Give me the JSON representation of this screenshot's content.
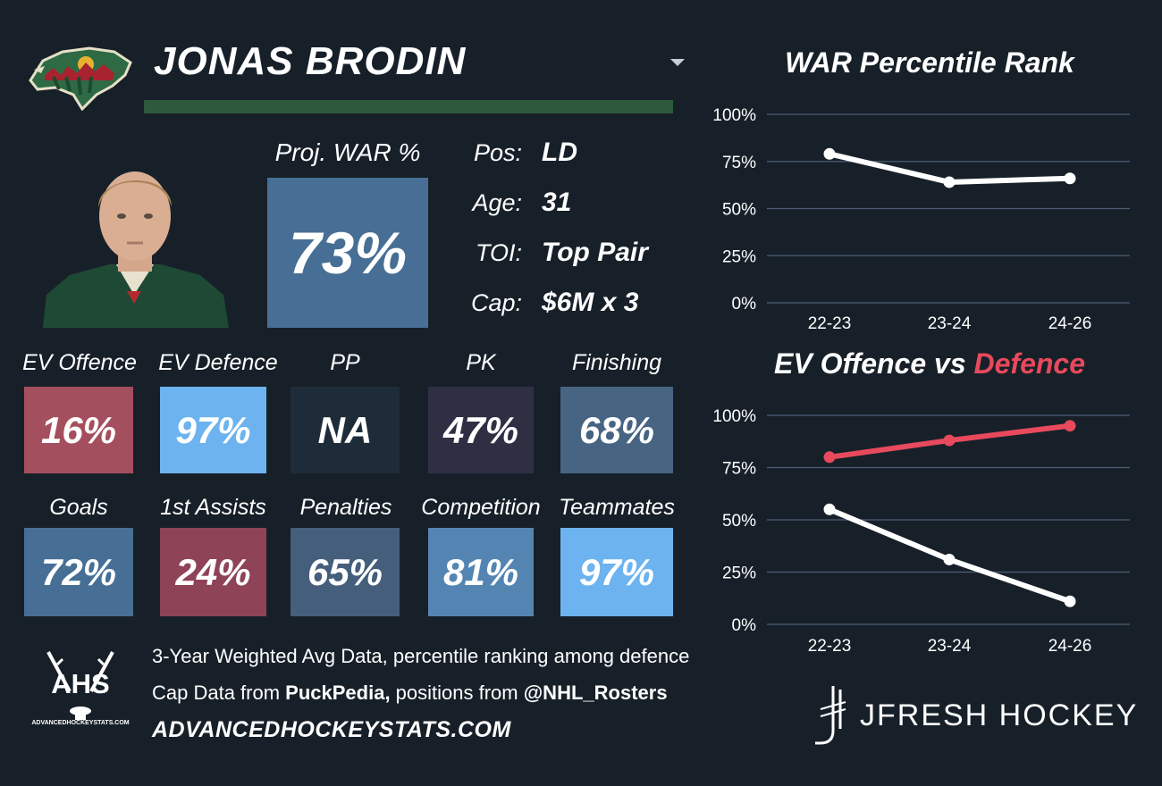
{
  "header": {
    "player_name": "JONAS BRODIN"
  },
  "war": {
    "label": "Proj. WAR %",
    "value": "73%"
  },
  "info": [
    {
      "label": "Pos:",
      "value": "LD"
    },
    {
      "label": "Age:",
      "value": "31"
    },
    {
      "label": "TOI:",
      "value": "Top Pair"
    },
    {
      "label": "Cap:",
      "value": "$6M x 3"
    }
  ],
  "tiles_row1": [
    {
      "label": "EV Offence",
      "value": "16%",
      "color": "#a44f5e"
    },
    {
      "label": "EV Defence",
      "value": "97%",
      "color": "#6cb3ef"
    },
    {
      "label": "PP",
      "value": "NA",
      "color": "#1e2b39"
    },
    {
      "label": "PK",
      "value": "47%",
      "color": "#2f2f44"
    },
    {
      "label": "Finishing",
      "value": "68%",
      "color": "#476482"
    }
  ],
  "tiles_row2": [
    {
      "label": "Goals",
      "value": "72%",
      "color": "#476f95"
    },
    {
      "label": "1st Assists",
      "value": "24%",
      "color": "#8e4357"
    },
    {
      "label": "Penalties",
      "value": "65%",
      "color": "#455e7b"
    },
    {
      "label": "Competition",
      "value": "81%",
      "color": "#5485b2"
    },
    {
      "label": "Teammates",
      "value": "97%",
      "color": "#6cb3ef"
    }
  ],
  "footer": {
    "line1": "3-Year Weighted Avg Data, percentile ranking among defence",
    "line2_prefix": "Cap Data from ",
    "line2_source": "PuckPedia,",
    "line2_mid": " positions from ",
    "line2_handle": "@NHL_Rosters",
    "site": "ADVANCEDHOCKEYSTATS.COM",
    "ahs_logo_text": "AHS",
    "ahs_small_text": "ADVANCEDHOCKEYSTATS.COM",
    "brand": "JFRESH HOCKEY"
  },
  "chart_data": [
    {
      "type": "line",
      "title": "WAR Percentile Rank",
      "categories": [
        "22-23",
        "23-24",
        "24-26"
      ],
      "series": [
        {
          "values": [
            79,
            64,
            66
          ],
          "color": "#ffffff"
        }
      ],
      "y_ticks": [
        "0%",
        "25%",
        "50%",
        "75%",
        "100%"
      ],
      "ylim": [
        0,
        100
      ],
      "grid": true
    },
    {
      "type": "line",
      "title_part1": "EV Offence vs ",
      "title_part2": "Defence",
      "categories": [
        "22-23",
        "23-24",
        "24-26"
      ],
      "series": [
        {
          "name": "Defence",
          "values": [
            80,
            88,
            95
          ],
          "color": "#e8495c"
        },
        {
          "name": "EV Offence",
          "values": [
            55,
            31,
            11
          ],
          "color": "#ffffff"
        }
      ],
      "y_ticks": [
        "0%",
        "25%",
        "50%",
        "75%",
        "100%"
      ],
      "ylim": [
        0,
        100
      ],
      "grid": true
    }
  ]
}
